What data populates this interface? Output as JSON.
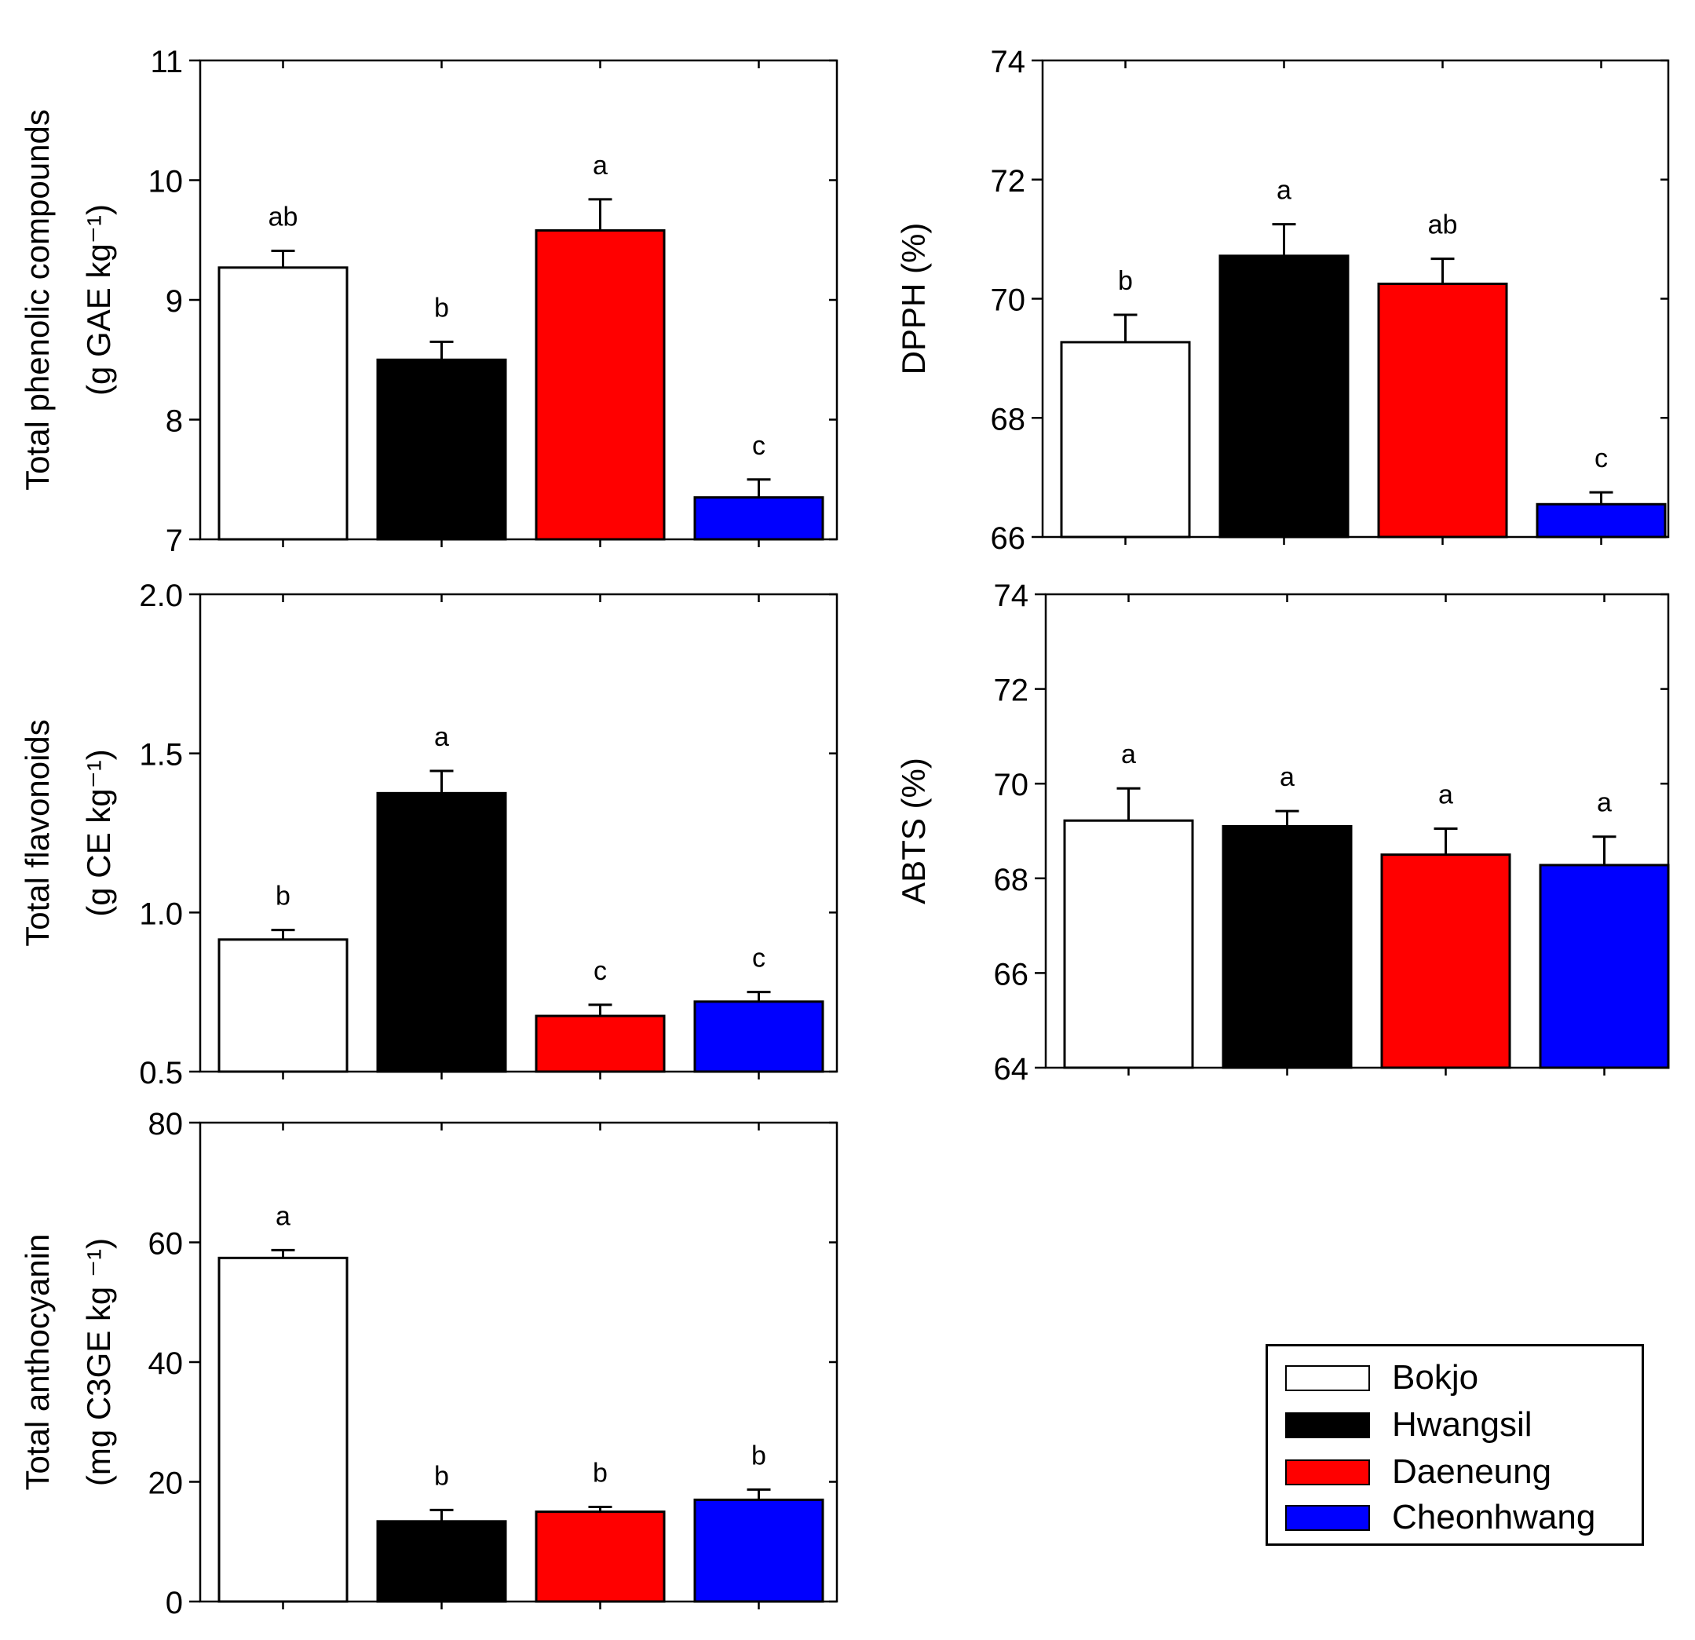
{
  "colors": {
    "bokjo": "#ffffff",
    "hwangsil": "#000000",
    "daeneung": "#ff0000",
    "cheonhwang": "#0000ff"
  },
  "legend": {
    "placement": "bottom-right",
    "items": [
      {
        "label": "Bokjo",
        "color": "#ffffff"
      },
      {
        "label": "Hwangsil",
        "color": "#000000"
      },
      {
        "label": "Daeneung",
        "color": "#ff0000"
      },
      {
        "label": "Cheonhwang",
        "color": "#0000ff"
      }
    ]
  },
  "chart_data": [
    {
      "type": "bar",
      "categories": [
        "Bokjo",
        "Hwangsil",
        "Daeneung",
        "Cheonhwang"
      ],
      "values": [
        9.27,
        8.5,
        9.58,
        7.35
      ],
      "errors": [
        0.14,
        0.15,
        0.26,
        0.15
      ],
      "letters": [
        "ab",
        "b",
        "a",
        "c"
      ],
      "ylabel_lines": [
        "Total phenolic compounds",
        "(g GAE kg⁻¹)"
      ],
      "ylim": [
        7,
        11
      ],
      "yticks": [
        "7",
        "8",
        "9",
        "10",
        "11"
      ],
      "grid": false
    },
    {
      "type": "bar",
      "categories": [
        "Bokjo",
        "Hwangsil",
        "Daeneung",
        "Cheonhwang"
      ],
      "values": [
        69.27,
        70.72,
        70.25,
        66.55
      ],
      "errors": [
        0.46,
        0.53,
        0.42,
        0.2
      ],
      "letters": [
        "b",
        "a",
        "ab",
        "c"
      ],
      "ylabel_lines": [
        "DPPH (%)"
      ],
      "ylim": [
        66,
        74
      ],
      "yticks": [
        "66",
        "68",
        "70",
        "72",
        "74"
      ],
      "grid": false
    },
    {
      "type": "bar",
      "categories": [
        "Bokjo",
        "Hwangsil",
        "Daeneung",
        "Cheonhwang"
      ],
      "values": [
        0.915,
        1.375,
        0.675,
        0.72
      ],
      "errors": [
        0.03,
        0.07,
        0.035,
        0.03
      ],
      "letters": [
        "b",
        "a",
        "c",
        "c"
      ],
      "ylabel_lines": [
        "Total flavonoids",
        "(g CE kg⁻¹)"
      ],
      "ylim": [
        0.5,
        2.0
      ],
      "yticks": [
        "0.5",
        "1.0",
        "1.5",
        "2.0"
      ],
      "grid": false
    },
    {
      "type": "bar",
      "categories": [
        "Bokjo",
        "Hwangsil",
        "Daeneung",
        "Cheonhwang"
      ],
      "values": [
        69.22,
        69.1,
        68.5,
        68.28
      ],
      "errors": [
        0.68,
        0.32,
        0.55,
        0.6
      ],
      "letters": [
        "a",
        "a",
        "a",
        "a"
      ],
      "ylabel_lines": [
        "ABTS (%)"
      ],
      "ylim": [
        64,
        74
      ],
      "yticks": [
        "64",
        "66",
        "68",
        "70",
        "72",
        "74"
      ],
      "grid": false
    },
    {
      "type": "bar",
      "categories": [
        "Bokjo",
        "Hwangsil",
        "Daeneung",
        "Cheonhwang"
      ],
      "values": [
        57.4,
        13.4,
        15.0,
        17.0
      ],
      "errors": [
        1.3,
        1.9,
        0.8,
        1.7
      ],
      "letters": [
        "a",
        "b",
        "b",
        "b"
      ],
      "ylabel_lines": [
        "Total anthocyanin",
        "(mg C3GE kg ⁻¹)"
      ],
      "ylim": [
        0,
        80
      ],
      "yticks": [
        "0",
        "20",
        "40",
        "60",
        "80"
      ],
      "grid": false
    }
  ]
}
